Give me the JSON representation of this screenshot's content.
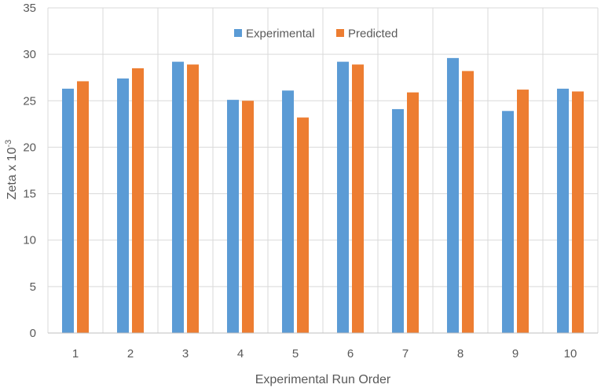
{
  "chart_data": {
    "type": "bar",
    "categories": [
      "1",
      "2",
      "3",
      "4",
      "5",
      "6",
      "7",
      "8",
      "9",
      "10"
    ],
    "series": [
      {
        "name": "Experimental",
        "color": "#5b9bd5",
        "values": [
          26.3,
          27.4,
          29.2,
          25.1,
          26.1,
          29.2,
          24.1,
          29.6,
          23.9,
          26.3
        ]
      },
      {
        "name": "Predicted",
        "color": "#ed7d31",
        "values": [
          27.1,
          28.5,
          28.9,
          25.0,
          23.2,
          28.9,
          25.9,
          28.2,
          26.2,
          26.0
        ]
      }
    ],
    "xlabel": "Experimental Run Order",
    "ylabel_base": "Zeta x 10",
    "ylabel_exp": "-3",
    "ylim": [
      0,
      35
    ],
    "yticks": [
      0,
      5,
      10,
      15,
      20,
      25,
      30,
      35
    ],
    "grid": true,
    "legend_position": "top-center"
  }
}
